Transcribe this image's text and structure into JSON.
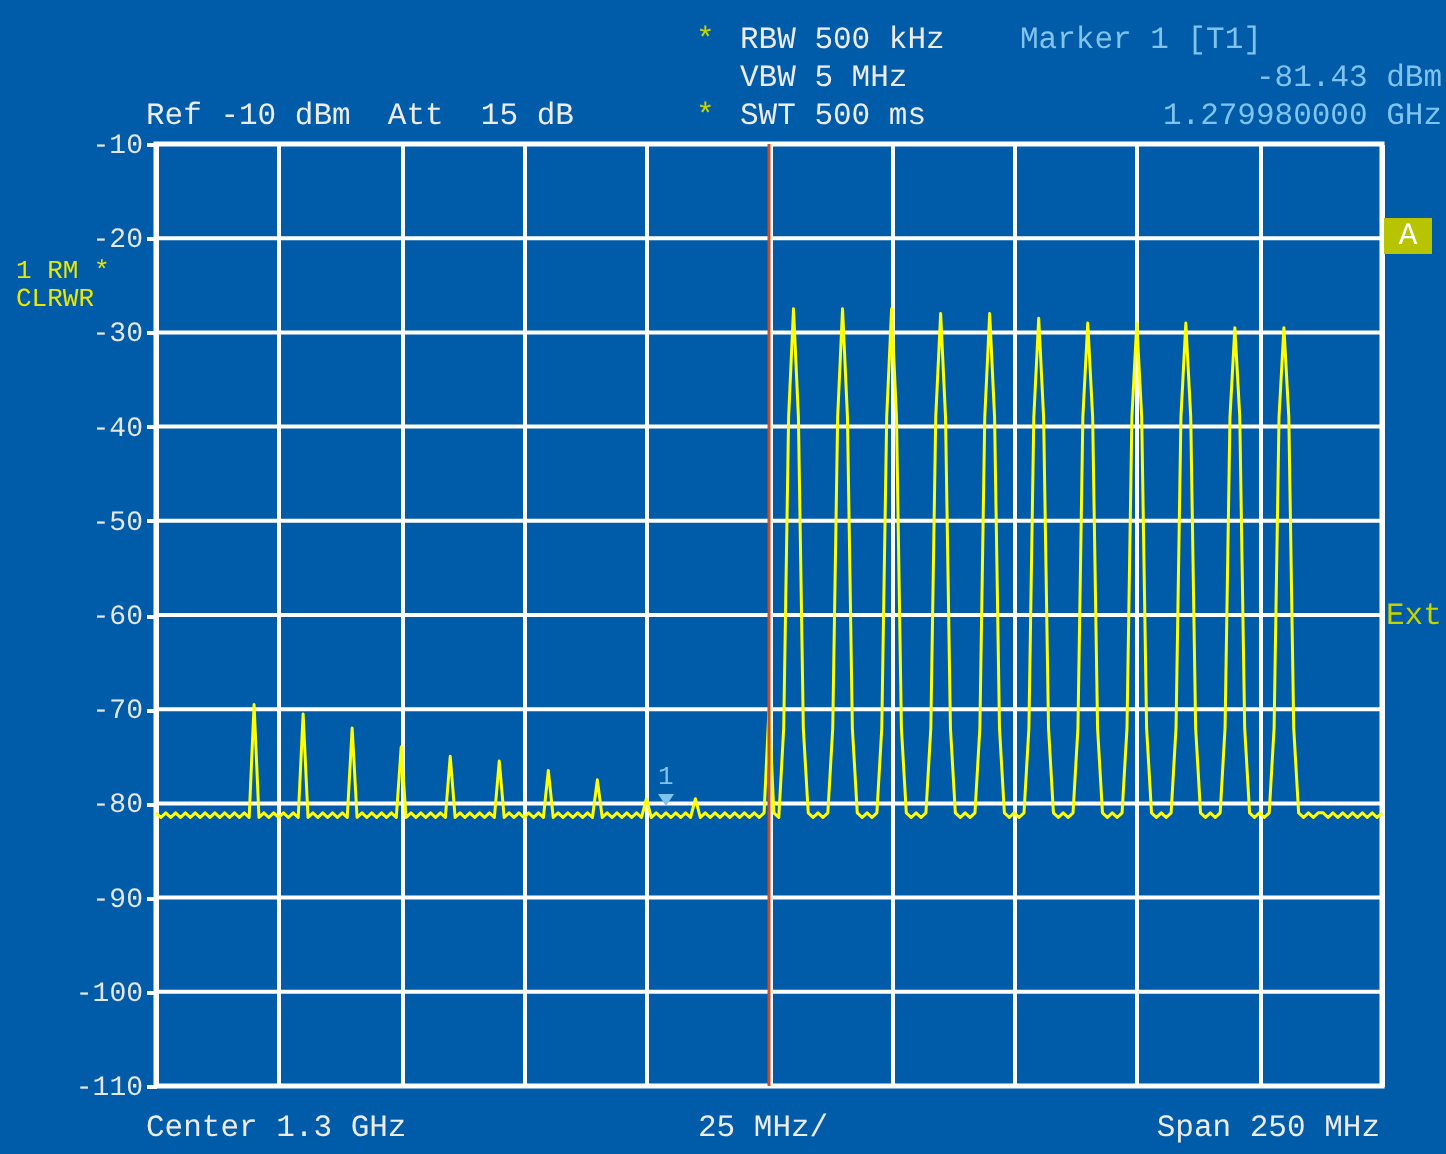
{
  "chart_data": {
    "type": "line",
    "annotations": [
      "RBW 500 kHz",
      "VBW 5 MHz",
      "SWT 500 ms",
      "Marker 1 [T1]",
      "-81.43 dBm",
      "1.279980000 GHz",
      "Ref -10 dBm  Att  15 dB",
      "1 RM *",
      "CLRWR",
      "A",
      "Ext",
      "Center 1.3 GHz",
      "25 MHz/",
      "Span 250 MHz",
      "*",
      "*",
      "1"
    ],
    "categories": [
      null,
      null,
      null,
      null,
      null,
      null,
      null,
      null,
      null,
      null,
      null,
      null,
      null,
      null,
      null,
      null,
      null,
      null,
      null,
      null,
      null,
      null,
      null,
      null,
      null,
      null,
      null,
      null,
      null,
      null,
      null,
      null,
      null,
      null,
      null,
      null,
      null,
      null,
      null,
      null,
      null,
      null,
      null,
      null,
      null,
      null,
      null,
      null,
      null,
      null,
      null,
      null,
      null,
      null,
      null,
      null,
      null,
      null,
      null,
      null,
      null,
      null,
      null,
      null,
      null,
      null,
      null,
      null,
      null,
      null,
      null,
      null,
      null,
      null,
      null,
      null,
      null,
      null,
      null,
      null,
      null,
      null,
      null,
      null,
      null,
      null,
      null,
      null,
      null,
      null,
      null,
      null,
      null,
      null,
      null,
      null,
      null,
      null,
      null,
      null,
      null,
      null,
      null,
      null,
      null,
      null,
      null,
      null,
      null,
      null,
      null,
      null,
      null,
      null,
      null,
      null,
      null,
      null,
      null,
      null,
      null,
      null,
      null,
      null,
      null,
      null,
      null,
      null,
      null,
      null,
      null,
      null,
      null,
      null,
      null,
      null,
      null,
      null,
      null,
      null,
      null,
      null,
      null,
      null,
      null,
      null,
      null,
      null,
      null,
      null,
      null,
      null,
      null,
      null,
      null,
      null,
      null,
      null,
      null,
      null,
      null,
      null,
      null,
      null,
      null,
      null,
      null,
      null,
      null,
      null,
      null,
      null,
      null,
      null,
      null,
      null,
      null,
      null,
      null,
      null,
      null,
      null,
      null,
      null,
      null,
      null,
      null,
      null,
      null,
      null,
      null,
      null,
      null,
      null,
      null,
      null,
      null,
      null,
      null,
      null,
      null,
      null,
      null,
      null,
      null,
      null,
      null,
      null,
      null,
      null,
      null,
      null,
      null,
      null,
      null,
      null,
      null,
      null,
      null,
      null,
      null,
      null,
      null,
      null,
      null,
      null,
      null,
      null,
      null,
      null,
      null,
      null,
      null,
      null,
      null,
      null,
      null,
      null,
      null,
      null,
      null,
      null,
      null,
      null,
      null,
      null,
      null,
      null,
      null,
      null,
      null
    ],
    "series": [
      {
        "color": "#ffff00",
        "values": [
          -81,
          -81.5,
          -81,
          -81.5,
          -81,
          -81.5,
          -81,
          -81.5,
          -81,
          -81.5,
          -81,
          -81.5,
          -81,
          -81.5,
          -81,
          -81.5,
          -81,
          -81.5,
          -81,
          -81.5,
          -69.5,
          -81.5,
          -81,
          -81.5,
          -81,
          -81.5,
          -81,
          -81.5,
          -81,
          -81.5,
          -70.5,
          -81.5,
          -81,
          -81.5,
          -81,
          -81.5,
          -81,
          -81.5,
          -81,
          -81.5,
          -72,
          -81.5,
          -81,
          -81.5,
          -81,
          -81.5,
          -81,
          -81.5,
          -81,
          -81.5,
          -74,
          -81.5,
          -81,
          -81.5,
          -81,
          -81.5,
          -81,
          -81.5,
          -81,
          -81.5,
          -75,
          -81.5,
          -81,
          -81.5,
          -81,
          -81.5,
          -81,
          -81.5,
          -81,
          -81.5,
          -75.5,
          -81.5,
          -81,
          -81.5,
          -81,
          -81.5,
          -81,
          -81.5,
          -81,
          -81.5,
          -76.5,
          -81.5,
          -81,
          -81.5,
          -81,
          -81.5,
          -81,
          -81.5,
          -81,
          -81.5,
          -77.5,
          -81.5,
          -81,
          -81.5,
          -81,
          -81.5,
          -81,
          -81.5,
          -81,
          -81.5,
          -79.5,
          -81.5,
          -81,
          -81.5,
          -81,
          -81.5,
          -81,
          -81.5,
          -81,
          -81.5,
          -79.5,
          -81.5,
          -81,
          -81.5,
          -81,
          -81.5,
          -81,
          -81.5,
          -81,
          -81.5,
          -81,
          -81.5,
          -81,
          -81.5,
          -81,
          -70,
          -81,
          -81.5,
          -72,
          -39,
          -27.5,
          -39,
          -72,
          -81,
          -81.5,
          -81,
          -81.5,
          -81,
          -72,
          -39,
          -27.5,
          -39,
          -72,
          -81,
          -81.5,
          -81,
          -81.5,
          -81,
          -72,
          -39,
          -27.5,
          -39,
          -72,
          -81,
          -81.5,
          -81,
          -81.5,
          -81,
          -72,
          -39,
          -28,
          -39,
          -72,
          -81,
          -81.5,
          -81,
          -81.5,
          -81,
          -72,
          -39,
          -28,
          -39,
          -72,
          -81,
          -81.5,
          -81,
          -81.5,
          -81,
          -72,
          -39,
          -28.5,
          -39,
          -72,
          -81,
          -81.5,
          -81,
          -81.5,
          -81,
          -72,
          -39,
          -29,
          -39,
          -72,
          -81,
          -81.5,
          -81,
          -81.5,
          -81,
          -72,
          -39,
          -29,
          -39,
          -72,
          -81,
          -81.5,
          -81,
          -81.5,
          -81,
          -72,
          -39,
          -29,
          -39,
          -72,
          -81,
          -81.5,
          -81,
          -81.5,
          -81,
          -72,
          -39,
          -29.5,
          -39,
          -72,
          -81,
          -81.5,
          -81,
          -81.5,
          -81,
          -72,
          -39,
          -29.5,
          -39,
          -72,
          -81,
          -81.5,
          -81,
          -81.5,
          -81,
          -81,
          -81.5,
          -81,
          -81.5,
          -81,
          -81.5,
          -81,
          -81.5,
          -81,
          -81.5,
          -81,
          -81.5,
          -81
        ]
      }
    ],
    "ylim": [
      -110,
      -10
    ],
    "yticks": [
      -10,
      -20,
      -30,
      -40,
      -50,
      -60,
      -70,
      -80,
      -90,
      -100,
      -110
    ],
    "ref_lines": [
      {
        "axis": "x",
        "color": "#c0502f"
      }
    ],
    "grid": true,
    "line_style": "solid",
    "marker": "none"
  }
}
